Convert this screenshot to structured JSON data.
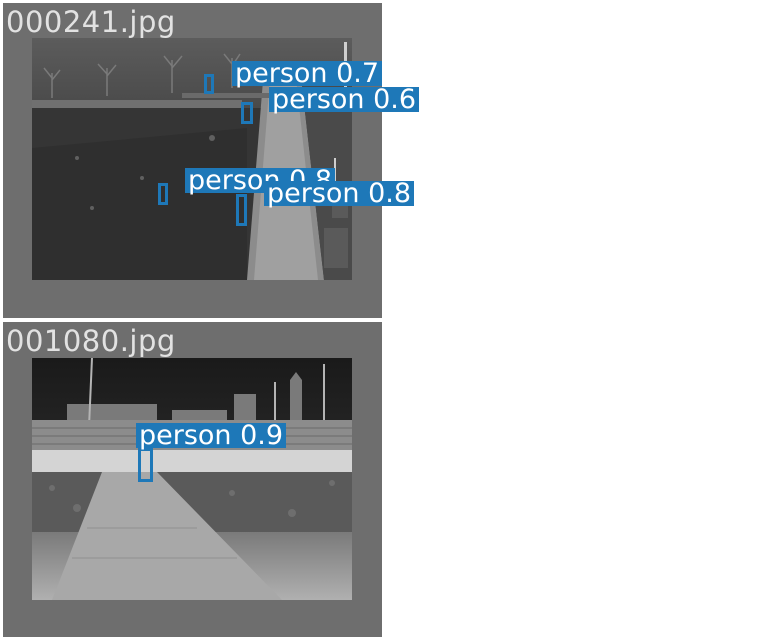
{
  "panels": [
    {
      "filename": "000241.jpg",
      "detections": [
        {
          "label": "person 0.7"
        },
        {
          "label": "person 0.6"
        },
        {
          "label": "person 0.8"
        },
        {
          "label": "person 0.8"
        }
      ]
    },
    {
      "filename": "001080.jpg",
      "detections": [
        {
          "label": "person 0.9"
        }
      ]
    }
  ],
  "colors": {
    "tile_background": "#6e6e6e",
    "box": "#1e78b8",
    "label_text": "#ffffff",
    "filename_text": "#e2e2e2"
  }
}
